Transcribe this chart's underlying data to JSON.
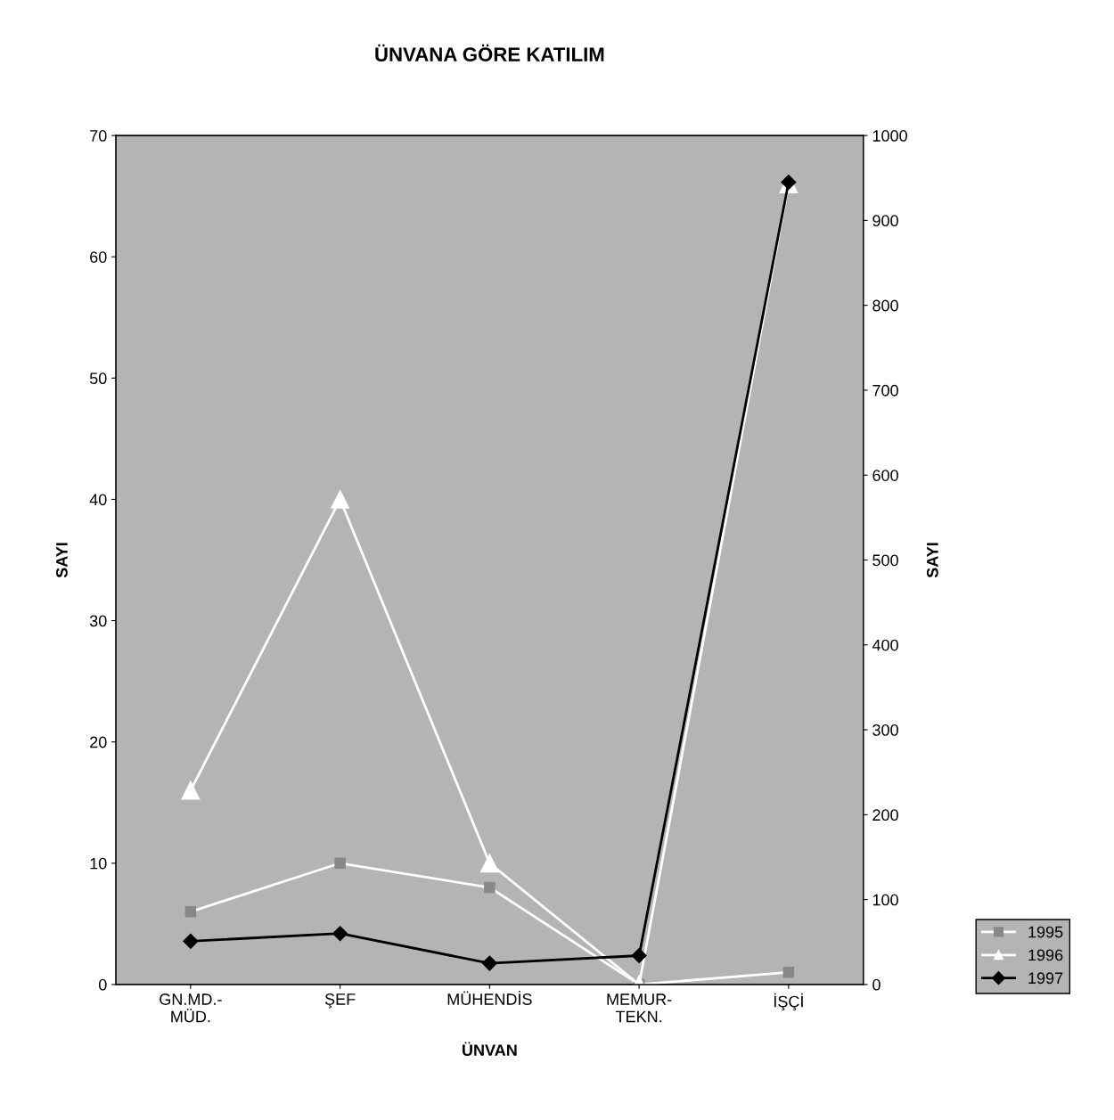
{
  "chart_data": {
    "type": "line",
    "title": "ÜNVANA GÖRE KATILIM",
    "xlabel": "ÜNVAN",
    "ylabel": "SAYI",
    "y2label": "SAYI",
    "categories": [
      "GN.MD.-\nMÜD.",
      "ŞEF",
      "MÜHENDİS",
      "MEMUR-\nTEKN.",
      "İŞÇİ"
    ],
    "series": [
      {
        "name": "1995",
        "color": "#ffffff",
        "marker": "square",
        "values": [
          6,
          10,
          8,
          0,
          1
        ]
      },
      {
        "name": "1996",
        "color": "#ffffff",
        "marker": "triangle",
        "values": [
          16,
          40,
          10,
          0,
          66
        ]
      },
      {
        "name": "1997",
        "color": "#000000",
        "marker": "diamond",
        "axis": "y2",
        "values": [
          51,
          60,
          25,
          34,
          945
        ]
      }
    ],
    "ylim": [
      0,
      70
    ],
    "yticks": [
      0,
      10,
      20,
      30,
      40,
      50,
      60,
      70
    ],
    "y2lim": [
      0,
      1000
    ],
    "y2ticks": [
      0,
      100,
      200,
      300,
      400,
      500,
      600,
      700,
      800,
      900,
      1000
    ],
    "grid": false,
    "legend": "bottom right"
  }
}
